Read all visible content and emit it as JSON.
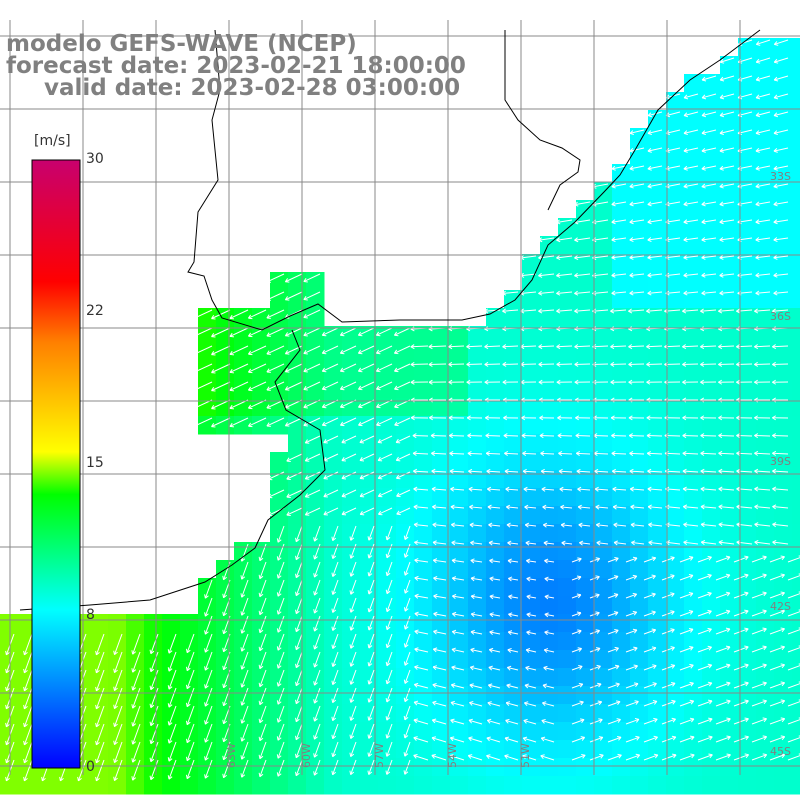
{
  "header": {
    "model": "modelo GEFS-WAVE (NCEP)",
    "forecast": "forecast date: 2023-02-21 18:00:00",
    "valid": "valid date: 2023-02-28 03:00:00"
  },
  "colorbar": {
    "unit": "[m/s]",
    "ticks": [
      "30",
      "22",
      "15",
      "8",
      "0"
    ],
    "colors": [
      "#0000ff",
      "#0080ff",
      "#00ffff",
      "#00ff00",
      "#ffff00",
      "#ff8000",
      "#ff0000",
      "#c8006e"
    ]
  },
  "lon_labels": [
    "63W",
    "60W",
    "57W",
    "54W",
    "51W"
  ],
  "lat_labels": [
    "33S",
    "36S",
    "39S",
    "42S",
    "45S"
  ],
  "colors": {
    "grid": "#888888",
    "coast": "#000000",
    "arrow": "#ffffff",
    "label": "#808080"
  }
}
